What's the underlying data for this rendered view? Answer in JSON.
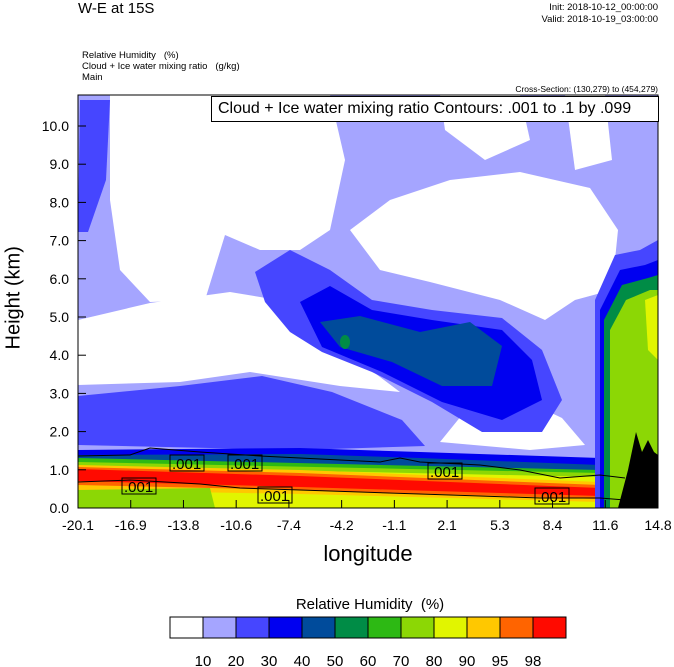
{
  "header": {
    "title": "W-E at 15S",
    "init": "Init: 2018-10-12_00:00:00",
    "valid": "Valid: 2018-10-19_03:00:00",
    "fields": [
      "Relative Humidity   (%)",
      "Cloud + Ice water mixing ratio   (g/kg)",
      "Main"
    ],
    "cross_section": "Cross-Section: (130,279) to (454,279)"
  },
  "chart_data": {
    "type": "heatmap",
    "subtype": "filled contour cross-section",
    "contour_title": "Cloud + Ice water mixing ratio Contours: .001 to .1 by .099",
    "xlabel": "longitude",
    "ylabel": "Height (km)",
    "xlim": [
      -20.1,
      14.8
    ],
    "ylim": [
      0,
      10.8
    ],
    "x_ticks": [
      "-20.1",
      "-16.9",
      "-13.8",
      "-10.6",
      "-7.4",
      "-4.2",
      "-1.1",
      "2.1",
      "5.3",
      "8.4",
      "11.6",
      "14.8"
    ],
    "y_ticks": [
      "0.0",
      "1.0",
      "2.0",
      "3.0",
      "4.0",
      "5.0",
      "6.0",
      "7.0",
      "8.0",
      "9.0",
      "10.0"
    ],
    "contour_labels": [
      ".001",
      ".001",
      ".001",
      ".001",
      ".001",
      ".001"
    ],
    "colorbar": {
      "title": "Relative Humidity  (%)",
      "levels": [
        "10",
        "20",
        "30",
        "40",
        "50",
        "60",
        "70",
        "80",
        "90",
        "95",
        "98"
      ],
      "colors": [
        "#ffffff",
        "#a5a5ff",
        "#4646ff",
        "#0000f0",
        "#004b9b",
        "#008c46",
        "#2db914",
        "#8cd705",
        "#e1f500",
        "#ffc800",
        "#ff6400",
        "#ff0a00"
      ]
    }
  }
}
